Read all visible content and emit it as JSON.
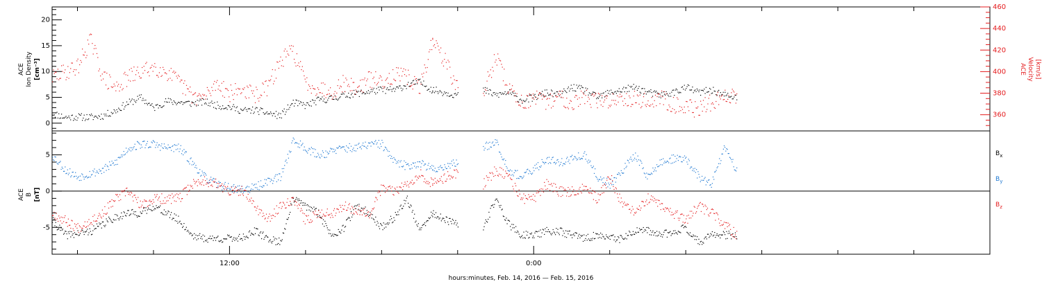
{
  "figure": {
    "xaxis_label": "hours:minutes, Feb. 14, 2016 — Feb. 15, 2016",
    "colors": {
      "black": "#000000",
      "red": "#e41a1c",
      "blue": "#1f78d1"
    }
  },
  "chart_data": [
    {
      "type": "scatter",
      "panel": "top",
      "grid": false,
      "x_unit": "hours since 2016-02-14 00:00 UT",
      "xlim": [
        5.0,
        42.0
      ],
      "x_ticks": [
        12,
        24
      ],
      "x_tick_labels": [
        "12:00",
        "0:00"
      ],
      "ylabel_left": [
        "ACE",
        "Ion Density",
        "[cm⁻³]"
      ],
      "ylabel_right": [
        "ACE",
        "Velocity",
        "[km/s]"
      ],
      "ylim_left": [
        -1.5,
        22.5
      ],
      "ylim_right": [
        345,
        460
      ],
      "left_ticks": [
        0,
        5,
        10,
        15,
        20
      ],
      "right_ticks": [
        360,
        380,
        400,
        420,
        440,
        460
      ],
      "series": [
        {
          "axis": "left",
          "color": "#000000",
          "segments": [
            {
              "x": [
                5.0,
                5.5,
                6.0,
                6.5,
                7.0,
                7.5,
                8.0,
                8.5,
                9.0,
                9.5,
                10.0,
                10.5,
                11.0,
                11.5,
                12.0,
                12.5,
                13.0,
                13.5,
                14.0,
                14.5,
                15.0,
                15.5,
                16.0,
                16.5,
                17.0,
                17.5,
                18.0,
                18.5,
                19.0,
                19.5,
                20.0
              ],
              "y": [
                2,
                1.2,
                1.3,
                1.2,
                1.5,
                2.5,
                4,
                5,
                3,
                4.3,
                4.1,
                3.9,
                4.2,
                3.5,
                3.2,
                2.5,
                2.6,
                2,
                1.5,
                4,
                3.5,
                4.5,
                4.8,
                5.5,
                5.8,
                6.2,
                6.5,
                6.5,
                7.5,
                8,
                6.5
              ]
            },
            {
              "x": [
                20.0,
                20.5,
                21.0
              ],
              "y": [
                6.5,
                6,
                5.5
              ]
            },
            {
              "x": [
                22.0,
                22.5,
                23.0,
                23.5,
                24.0,
                24.5,
                25.0,
                25.5,
                26.0,
                26.5,
                27.0,
                27.5,
                28.0,
                28.5,
                29.0,
                29.5,
                30.0,
                30.5,
                31.0,
                31.5,
                32.0
              ],
              "y": [
                6.5,
                5.5,
                6,
                4.5,
                5,
                6,
                5.5,
                7,
                6.5,
                5,
                6,
                6.5,
                7,
                6,
                5.5,
                6,
                7,
                6,
                6.5,
                5.5,
                5
              ]
            }
          ]
        },
        {
          "axis": "right",
          "color": "#e41a1c",
          "segments": [
            {
              "x": [
                5.0,
                5.5,
                6.0,
                6.5,
                7.0,
                7.5,
                8.0,
                8.5,
                9.0,
                9.5,
                10.0,
                10.5,
                11.0,
                11.5,
                12.0,
                12.5,
                13.0,
                13.5,
                14.0,
                14.5,
                15.0,
                15.5,
                16.0,
                16.5,
                17.0,
                17.5,
                18.0,
                18.5,
                19.0,
                19.5,
                20.0
              ],
              "y": [
                395,
                400,
                405,
                430,
                395,
                385,
                395,
                400,
                405,
                400,
                390,
                378,
                376,
                390,
                380,
                384,
                378,
                386,
                410,
                420,
                390,
                385,
                382,
                390,
                385,
                393,
                392,
                397,
                395,
                385,
                430
              ]
            },
            {
              "x": [
                20.0,
                20.5,
                21.0
              ],
              "y": [
                430,
                410,
                383
              ]
            },
            {
              "x": [
                22.0,
                22.5,
                23.0,
                23.5,
                24.0,
                24.5,
                25.0,
                25.5,
                26.0,
                26.5,
                27.0,
                27.5,
                28.0,
                28.5,
                29.0,
                29.5,
                30.0,
                30.5,
                31.0,
                31.5,
                32.0
              ],
              "y": [
                380,
                415,
                385,
                372,
                375,
                372,
                377,
                372,
                377,
                373,
                373,
                377,
                375,
                372,
                376,
                370,
                368,
                365,
                372,
                377,
                378
              ]
            }
          ]
        }
      ]
    },
    {
      "type": "scatter",
      "panel": "bottom",
      "grid": false,
      "x_unit": "hours since 2016-02-14 00:00 UT",
      "xlim": [
        5.0,
        42.0
      ],
      "x_ticks": [
        12,
        24
      ],
      "x_tick_labels": [
        "12:00",
        "0:00"
      ],
      "ylabel_left": [
        "ACE",
        "B",
        "[nT]"
      ],
      "ylim": [
        -8.7,
        8.3
      ],
      "left_ticks": [
        -5,
        0,
        5
      ],
      "zero_line": true,
      "legend_position": "right",
      "series": [
        {
          "name_base": "B",
          "name_sub": "x",
          "color": "#000000",
          "segments": [
            {
              "x": [
                5.0,
                5.5,
                6.0,
                6.5,
                7.0,
                7.5,
                8.0,
                8.5,
                9.0,
                9.5,
                10.0,
                10.5,
                11.0,
                11.5,
                12.0,
                12.5,
                13.0,
                13.5,
                14.0,
                14.5,
                15.0,
                15.5,
                16.0,
                16.5,
                17.0,
                17.5,
                18.0,
                18.5,
                19.0,
                19.5,
                20.0
              ],
              "y": [
                -4,
                -6,
                -5.8,
                -5.5,
                -4.5,
                -3.5,
                -3,
                -3,
                -2,
                -3,
                -4,
                -6,
                -6.5,
                -6.5,
                -6.5,
                -6.3,
                -5.5,
                -6.5,
                -7,
                -1,
                -2,
                -3,
                -6,
                -5,
                -2,
                -3,
                -5,
                -3.5,
                -1,
                -5.5,
                -3
              ]
            },
            {
              "x": [
                20.0,
                20.5,
                21.0
              ],
              "y": [
                -3,
                -4,
                -4.5
              ]
            },
            {
              "x": [
                22.0,
                22.5,
                23.0,
                23.5,
                24.0,
                24.5,
                25.0,
                25.5,
                26.0,
                26.5,
                27.0,
                27.5,
                28.0,
                28.5,
                29.0,
                29.5,
                30.0,
                30.5,
                31.0,
                31.5,
                32.0
              ],
              "y": [
                -5,
                -1,
                -4.5,
                -6,
                -6,
                -5.5,
                -5.5,
                -6,
                -6.5,
                -6,
                -6.5,
                -6.5,
                -5.5,
                -5.5,
                -6,
                -5.5,
                -5,
                -7,
                -6,
                -6,
                -6
              ]
            }
          ]
        },
        {
          "name_base": "B",
          "name_sub": "y",
          "color": "#1f78d1",
          "segments": [
            {
              "x": [
                5.0,
                5.5,
                6.0,
                6.5,
                7.0,
                7.5,
                8.0,
                8.5,
                9.0,
                9.5,
                10.0,
                10.5,
                11.0,
                11.5,
                12.0,
                12.5,
                13.0,
                13.5,
                14.0,
                14.5,
                15.0,
                15.5,
                16.0,
                16.5,
                17.0,
                17.5,
                18.0,
                18.5,
                19.0,
                19.5,
                20.0
              ],
              "y": [
                5,
                3,
                2,
                2.5,
                3,
                4,
                6,
                6.5,
                6.5,
                6,
                6,
                4,
                2,
                1,
                0.5,
                0.3,
                0.5,
                1.5,
                2,
                7,
                6,
                5,
                5.5,
                6,
                6,
                6.5,
                6.5,
                4,
                3.5,
                4,
                3
              ]
            },
            {
              "x": [
                20.0,
                20.5,
                21.0
              ],
              "y": [
                3,
                3.5,
                4
              ]
            },
            {
              "x": [
                22.0,
                22.5,
                23.0,
                23.5,
                24.0,
                24.5,
                25.0,
                25.5,
                26.0,
                26.5,
                27.0,
                27.5,
                28.0,
                28.5,
                29.0,
                29.5,
                30.0,
                30.5,
                31.0,
                31.5,
                32.0
              ],
              "y": [
                6,
                7,
                3,
                2,
                3,
                4.5,
                4,
                4.5,
                5,
                2,
                1,
                3,
                5,
                2,
                4,
                4.5,
                4.5,
                2,
                1,
                6,
                3
              ]
            }
          ]
        },
        {
          "name_base": "B",
          "name_sub": "z",
          "color": "#e41a1c",
          "segments": [
            {
              "x": [
                5.0,
                5.5,
                6.0,
                6.5,
                7.0,
                7.5,
                8.0,
                8.5,
                9.0,
                9.5,
                10.0,
                10.5,
                11.0,
                11.5,
                12.0,
                12.5,
                13.0,
                13.5,
                14.0,
                14.5,
                15.0,
                15.5,
                16.0,
                16.5,
                17.0,
                17.5,
                18.0,
                18.5,
                19.0,
                19.5,
                20.0
              ],
              "y": [
                -3,
                -4,
                -5,
                -4,
                -3,
                -1,
                0,
                -2,
                -1,
                -1,
                -1,
                1,
                1.5,
                1,
                0,
                0,
                -2,
                -4,
                -2,
                -1,
                -4,
                -3,
                -3,
                -2,
                -2.5,
                -3,
                0.5,
                0,
                1,
                2.5,
                1
              ]
            },
            {
              "x": [
                20.0,
                20.5,
                21.0
              ],
              "y": [
                1,
                2,
                2.5
              ]
            },
            {
              "x": [
                22.0,
                22.5,
                23.0,
                23.5,
                24.0,
                24.5,
                25.0,
                25.5,
                26.0,
                26.5,
                27.0,
                27.5,
                28.0,
                28.5,
                29.0,
                29.5,
                30.0,
                30.5,
                31.0,
                31.5,
                32.0
              ],
              "y": [
                1,
                3,
                2,
                -1,
                -1,
                1,
                0,
                0,
                0.5,
                -1,
                2,
                -2,
                -3,
                -1,
                -2,
                -3,
                -4,
                -2,
                -3,
                -4.5,
                -6
              ]
            }
          ]
        }
      ]
    }
  ]
}
